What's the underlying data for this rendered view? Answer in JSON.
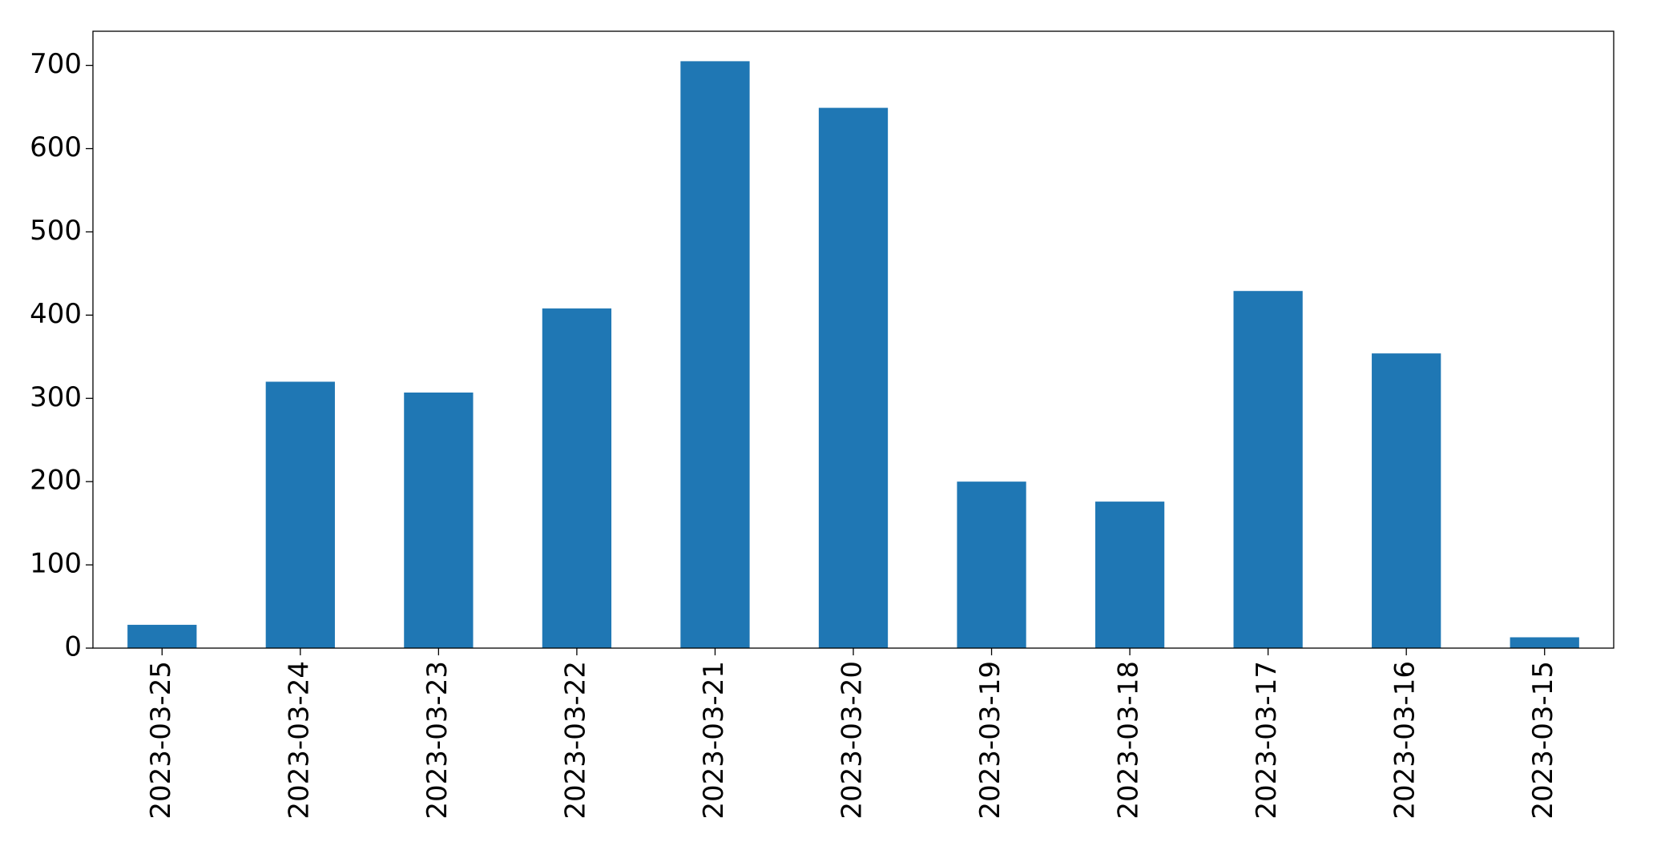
{
  "chart_data": {
    "type": "bar",
    "categories": [
      "2023-03-25",
      "2023-03-24",
      "2023-03-23",
      "2023-03-22",
      "2023-03-21",
      "2023-03-20",
      "2023-03-19",
      "2023-03-18",
      "2023-03-17",
      "2023-03-16",
      "2023-03-15"
    ],
    "values": [
      28,
      320,
      307,
      408,
      705,
      649,
      200,
      176,
      429,
      354,
      13
    ],
    "color": "#1f77b4",
    "ylim": [
      0,
      741
    ],
    "yticks": [
      0,
      100,
      200,
      300,
      400,
      500,
      600,
      700
    ],
    "grid": false
  }
}
